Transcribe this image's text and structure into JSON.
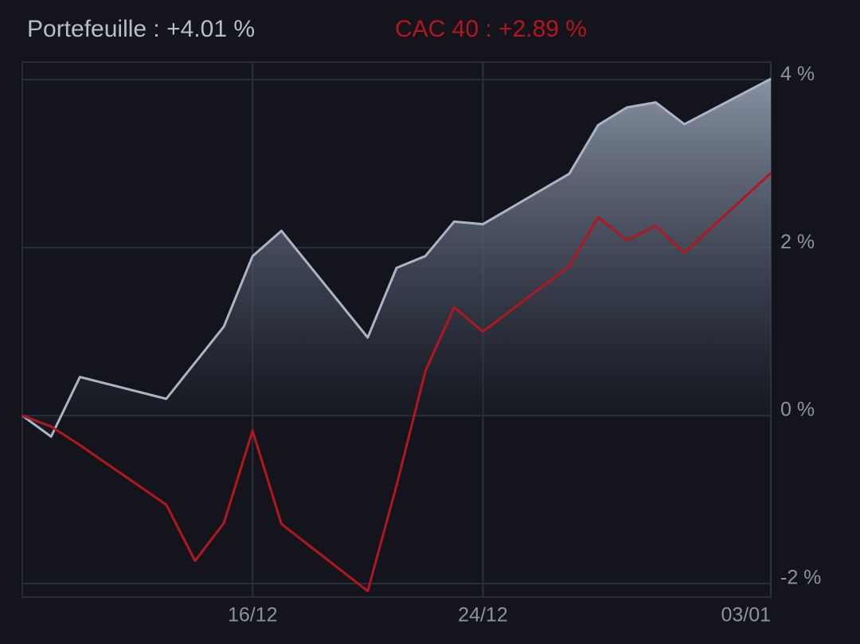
{
  "chart_data": {
    "type": "line",
    "x": [
      "08/12",
      "09/12",
      "10/12",
      "13/12",
      "14/12",
      "15/12",
      "16/12",
      "17/12",
      "20/12",
      "21/12",
      "22/12",
      "23/12",
      "24/12",
      "27/12",
      "28/12",
      "29/12",
      "30/12",
      "31/12",
      "03/01"
    ],
    "series": [
      {
        "name": "Portefeuille : +4.01 %",
        "color": "#aab4c4",
        "area": true,
        "values": [
          0,
          -0.25,
          0.46,
          0.2,
          0.63,
          1.06,
          1.9,
          2.2,
          0.93,
          1.76,
          1.9,
          2.31,
          2.28,
          2.88,
          3.46,
          3.67,
          3.73,
          3.47,
          4.01
        ]
      },
      {
        "name": "CAC 40 : +2.89 %",
        "color": "#b3171d",
        "area": false,
        "values": [
          0,
          -0.13,
          -0.35,
          -1.06,
          -1.73,
          -1.28,
          -0.18,
          -1.29,
          -2.09,
          -0.83,
          0.53,
          1.29,
          1.0,
          1.78,
          2.36,
          2.09,
          2.26,
          1.94,
          2.89
        ]
      }
    ],
    "xlim": [
      "08/12",
      "03/01"
    ],
    "xticks": [
      "16/12",
      "24/12",
      "03/01"
    ],
    "ylim": [
      -2.16,
      4.21
    ],
    "yticks": [
      {
        "value": 4,
        "label": "4 %"
      },
      {
        "value": 2,
        "label": "2 %"
      },
      {
        "value": 0,
        "label": "0 %"
      },
      {
        "value": -2,
        "label": "-2 %"
      }
    ],
    "grid": true
  }
}
